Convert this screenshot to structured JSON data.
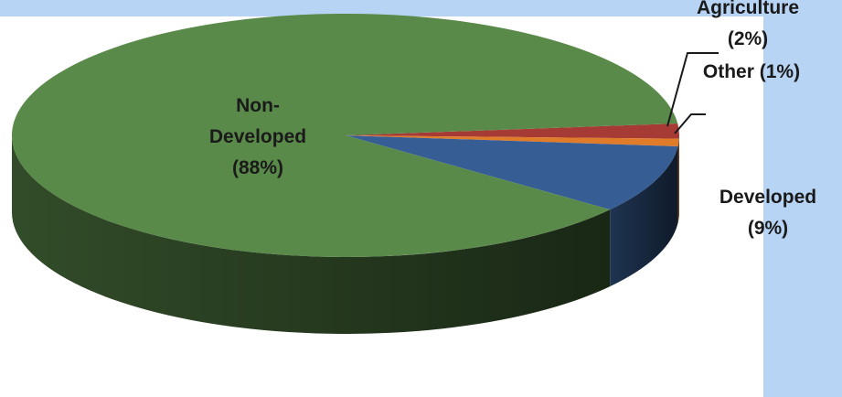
{
  "chart_data": {
    "type": "pie",
    "title": "",
    "slices": [
      {
        "label_lines": [
          "Agriculture",
          "(2%)"
        ],
        "value": 2,
        "color": "#a63a35"
      },
      {
        "label_lines": [
          "Other (1%)"
        ],
        "value": 1,
        "color": "#e07b2a"
      },
      {
        "label_lines": [
          "Developed",
          "(9%)"
        ],
        "value": 9,
        "color": "#365e94"
      },
      {
        "label_lines": [
          "Non-",
          "Developed",
          "(88%)"
        ],
        "value": 88,
        "color": "#5a8a4a"
      }
    ],
    "style": "3d-exploded-none",
    "legend": "none"
  }
}
